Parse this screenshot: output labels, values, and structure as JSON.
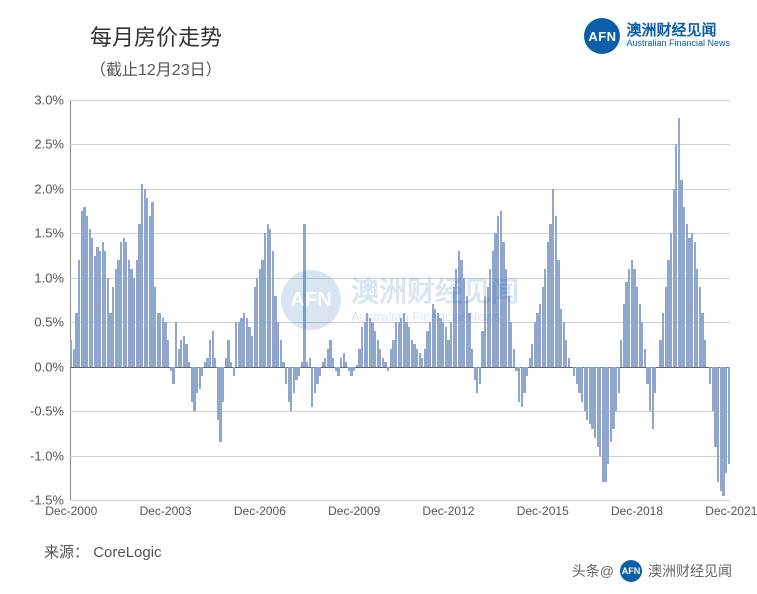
{
  "title": "每月房价走势",
  "subtitle": "（截止12月23日）",
  "brand": {
    "abbr": "AFN",
    "cn": "澳洲财经见闻",
    "en": "Australian Financial News"
  },
  "watermark": {
    "abbr": "AFN",
    "cn": "澳洲财经见闻",
    "en": "Australian Financial News"
  },
  "source_label": "来源：",
  "source_value": "CoreLogic",
  "footer_prefix": "头条@",
  "footer_name": "澳洲财经见闻",
  "chart": {
    "type": "bar",
    "bar_color": "#8fa7cf",
    "grid_color": "#d0d0d0",
    "zero_line_color": "#666666",
    "axis_color": "#888888",
    "background_color": "#ffffff",
    "ylim": [
      -1.5,
      3.0
    ],
    "ytick_step": 0.5,
    "y_format": "percent_one_decimal",
    "tick_fontsize": 13,
    "title_fontsize": 22,
    "subtitle_fontsize": 16,
    "bar_gap_ratio": 0.15,
    "x_labels": [
      "Dec-2000",
      "Dec-2003",
      "Dec-2006",
      "Dec-2009",
      "Dec-2012",
      "Dec-2015",
      "Dec-2018",
      "Dec-2021"
    ],
    "values": [
      0.3,
      0.2,
      0.6,
      1.2,
      1.75,
      1.8,
      1.7,
      1.55,
      1.45,
      1.25,
      1.35,
      1.3,
      1.4,
      1.3,
      1.0,
      0.6,
      0.9,
      1.1,
      1.2,
      1.4,
      1.45,
      1.4,
      1.2,
      1.1,
      1.0,
      1.2,
      1.6,
      2.05,
      2.0,
      1.9,
      1.7,
      1.85,
      0.9,
      0.6,
      0.6,
      0.55,
      0.5,
      0.3,
      -0.05,
      -0.2,
      0.5,
      0.2,
      0.3,
      0.35,
      0.25,
      0.05,
      -0.4,
      -0.5,
      -0.3,
      -0.25,
      -0.1,
      0.05,
      0.1,
      0.3,
      0.4,
      0.1,
      -0.6,
      -0.85,
      -0.4,
      0.1,
      0.3,
      0.05,
      -0.1,
      0.5,
      0.5,
      0.55,
      0.6,
      0.55,
      0.45,
      0.35,
      0.9,
      1.0,
      1.1,
      1.2,
      1.5,
      1.6,
      1.55,
      1.3,
      0.8,
      0.5,
      0.3,
      0.05,
      -0.2,
      -0.4,
      -0.5,
      -0.3,
      -0.15,
      -0.1,
      0.05,
      1.6,
      0.05,
      0.1,
      -0.45,
      -0.3,
      -0.2,
      -0.1,
      0.05,
      0.1,
      0.2,
      0.3,
      0.1,
      -0.05,
      -0.1,
      0.1,
      0.15,
      0.05,
      -0.05,
      -0.1,
      -0.05,
      0.02,
      0.2,
      0.45,
      0.5,
      0.6,
      0.55,
      0.5,
      0.4,
      0.3,
      0.2,
      0.1,
      0.05,
      -0.05,
      0.2,
      0.3,
      0.5,
      0.5,
      0.55,
      0.6,
      0.5,
      0.45,
      0.3,
      0.25,
      0.2,
      0.15,
      0.1,
      0.2,
      0.4,
      0.5,
      0.7,
      0.65,
      0.6,
      0.55,
      0.5,
      0.45,
      0.3,
      0.5,
      0.9,
      1.1,
      1.3,
      1.2,
      1.0,
      0.8,
      0.6,
      0.2,
      -0.15,
      -0.3,
      -0.2,
      0.4,
      0.8,
      0.9,
      1.1,
      1.3,
      1.5,
      1.7,
      1.75,
      1.4,
      1.1,
      0.8,
      0.5,
      0.2,
      -0.05,
      -0.4,
      -0.45,
      -0.3,
      -0.1,
      0.1,
      0.25,
      0.5,
      0.6,
      0.7,
      0.9,
      1.1,
      1.4,
      1.6,
      2.0,
      1.7,
      1.2,
      0.65,
      0.5,
      0.3,
      0.1,
      0.0,
      -0.1,
      -0.2,
      -0.3,
      -0.4,
      -0.5,
      -0.6,
      -0.65,
      -0.7,
      -0.8,
      -0.9,
      -1.0,
      -1.3,
      -1.3,
      -1.1,
      -0.85,
      -0.7,
      -0.5,
      -0.3,
      0.3,
      0.7,
      0.95,
      1.1,
      1.2,
      1.1,
      0.9,
      0.7,
      0.5,
      0.2,
      -0.2,
      -0.5,
      -0.7,
      -0.3,
      0.0,
      0.3,
      0.6,
      0.9,
      1.2,
      1.5,
      2.0,
      2.5,
      2.8,
      2.1,
      1.8,
      1.6,
      1.45,
      1.5,
      1.4,
      1.1,
      0.9,
      0.6,
      0.3,
      0.0,
      -0.2,
      -0.5,
      -0.9,
      -1.3,
      -1.4,
      -1.45,
      -1.2,
      -1.1
    ]
  }
}
